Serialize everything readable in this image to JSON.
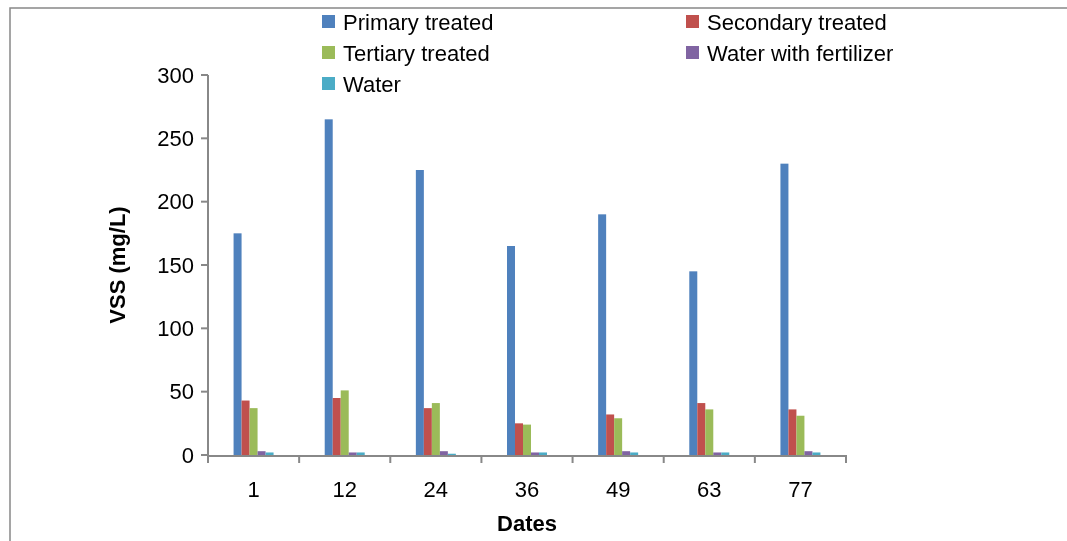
{
  "chart_data": {
    "type": "bar",
    "xlabel": "Dates",
    "ylabel": "VSS (mg/L)",
    "categories": [
      "1",
      "12",
      "24",
      "36",
      "49",
      "63",
      "77"
    ],
    "series": [
      {
        "name": "Primary treated",
        "color": "#4f81bd",
        "values": [
          175,
          265,
          225,
          165,
          190,
          145,
          230
        ]
      },
      {
        "name": "Secondary treated",
        "color": "#c0504d",
        "values": [
          43,
          45,
          37,
          25,
          32,
          41,
          36
        ]
      },
      {
        "name": "Tertiary treated",
        "color": "#9bbb59",
        "values": [
          37,
          51,
          41,
          24,
          29,
          36,
          31
        ]
      },
      {
        "name": "Water with fertilizer",
        "color": "#8064a2",
        "values": [
          3,
          2,
          3,
          2,
          3,
          2,
          3
        ]
      },
      {
        "name": "Water",
        "color": "#4bacc6",
        "values": [
          2,
          2,
          1,
          2,
          2,
          2,
          2
        ]
      }
    ],
    "ylim": [
      0,
      300
    ],
    "yticks": [
      0,
      50,
      100,
      150,
      200,
      250,
      300
    ],
    "grid": false,
    "legend": "top"
  }
}
